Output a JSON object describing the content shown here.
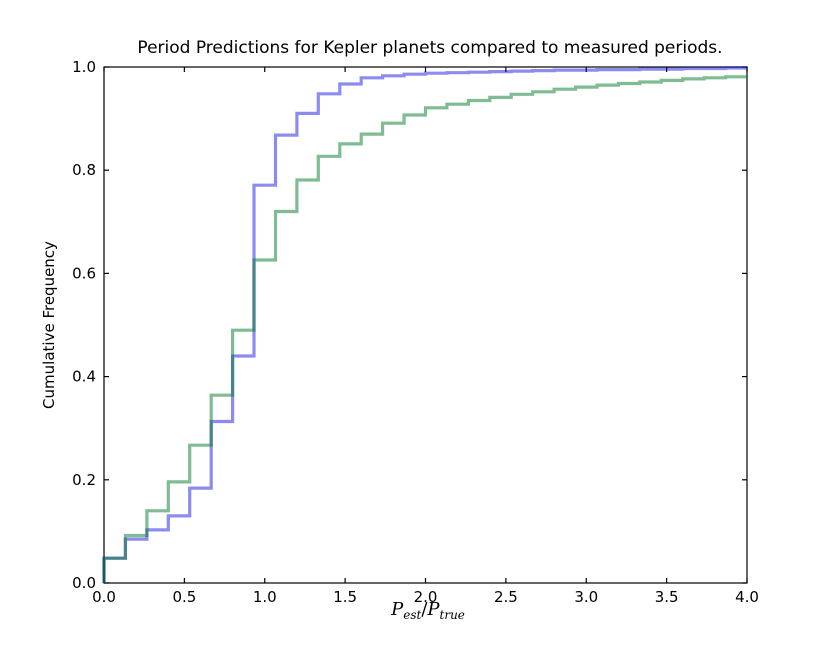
{
  "figure": {
    "background_color": "#ffffff",
    "axes_color": "#000000"
  },
  "chart_data": {
    "type": "line",
    "subtype": "cumulative-step-histogram",
    "title": "Period Predictions for Kepler planets compared to measured periods.",
    "xlabel": "P_est/P_true",
    "xlabel_parts": {
      "p1": "P",
      "sub1": "est",
      "slash": "/",
      "p2": "P",
      "sub2": "true"
    },
    "ylabel": "Cumulative Frequency",
    "xlim": [
      0.0,
      4.0
    ],
    "ylim": [
      0.0,
      1.0
    ],
    "grid": false,
    "legend": "none",
    "xtick_labels": [
      "0.0",
      "0.5",
      "1.0",
      "1.5",
      "2.0",
      "2.5",
      "3.0",
      "3.5",
      "4.0"
    ],
    "xtick_values": [
      0.0,
      0.5,
      1.0,
      1.5,
      2.0,
      2.5,
      3.0,
      3.5,
      4.0
    ],
    "ytick_labels": [
      "0.0",
      "0.2",
      "0.4",
      "0.6",
      "0.8",
      "1.0"
    ],
    "ytick_values": [
      0.0,
      0.2,
      0.4,
      0.6,
      0.8,
      1.0
    ],
    "bin_edges": [
      0,
      0.133,
      0.267,
      0.4,
      0.533,
      0.667,
      0.8,
      0.933,
      1.067,
      1.2,
      1.333,
      1.467,
      1.6,
      1.733,
      1.867,
      2.0,
      2.133,
      2.267,
      2.4,
      2.533,
      2.667,
      2.8,
      2.933,
      3.067,
      3.2,
      3.333,
      3.467,
      3.6,
      3.733,
      3.867,
      4.0
    ],
    "series": [
      {
        "name": "blue-cdf",
        "color": "#0000dd",
        "opacity": 0.45,
        "line_width": 3.2,
        "cumulative_values": [
          0.048,
          0.085,
          0.103,
          0.13,
          0.184,
          0.313,
          0.44,
          0.771,
          0.868,
          0.91,
          0.948,
          0.967,
          0.979,
          0.983,
          0.986,
          0.988,
          0.989,
          0.99,
          0.991,
          0.992,
          0.993,
          0.994,
          0.994,
          0.995,
          0.995,
          0.996,
          0.996,
          0.997,
          0.997,
          0.998
        ]
      },
      {
        "name": "green-cdf",
        "color": "#007a28",
        "opacity": 0.5,
        "line_width": 3.2,
        "cumulative_values": [
          0.048,
          0.092,
          0.14,
          0.196,
          0.267,
          0.364,
          0.49,
          0.626,
          0.72,
          0.781,
          0.827,
          0.851,
          0.87,
          0.891,
          0.907,
          0.921,
          0.928,
          0.935,
          0.941,
          0.947,
          0.952,
          0.957,
          0.961,
          0.965,
          0.968,
          0.971,
          0.974,
          0.977,
          0.979,
          0.981
        ]
      }
    ]
  }
}
